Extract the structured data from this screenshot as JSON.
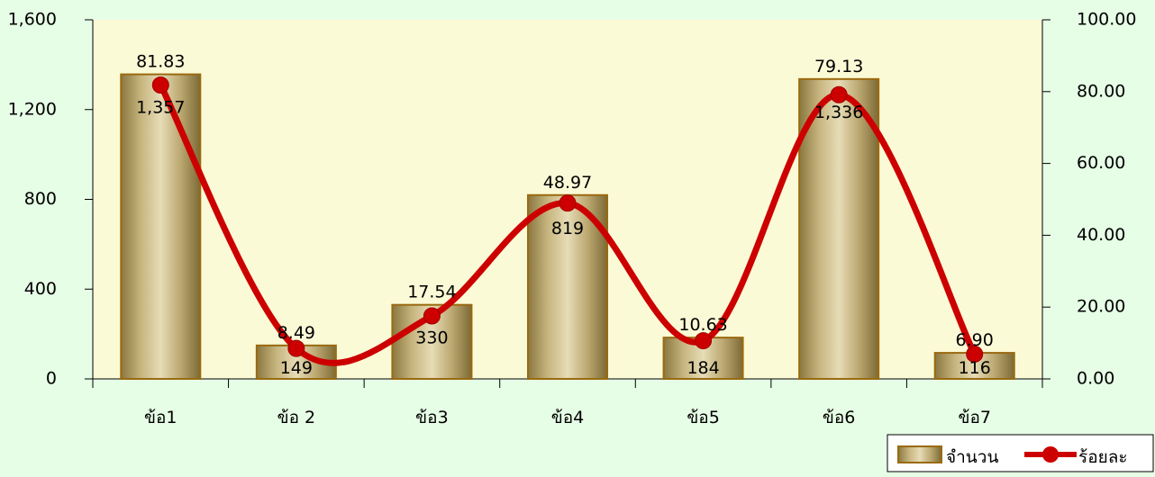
{
  "chart_data": {
    "type": "bar",
    "categories": [
      "ข้อ1",
      "ข้อ 2",
      "ข้อ3",
      "ข้อ4",
      "ข้อ5",
      "ข้อ6",
      "ข้อ7"
    ],
    "series": [
      {
        "name": "จำนวน",
        "type": "bar",
        "axis": "left",
        "values": [
          1357,
          149,
          330,
          819,
          184,
          1336,
          116
        ],
        "labels": [
          "1,357",
          "149",
          "330",
          "819",
          "184",
          "1,336",
          "116"
        ],
        "color": "#c4b07a"
      },
      {
        "name": "ร้อยละ",
        "type": "line",
        "axis": "right",
        "values": [
          81.83,
          8.49,
          17.54,
          48.97,
          10.63,
          79.13,
          6.9
        ],
        "labels": [
          "81.83",
          "8.49",
          "17.54",
          "48.97",
          "10.63",
          "79.13",
          "6.90"
        ],
        "color": "#cc0000"
      }
    ],
    "y_left": {
      "ylim": [
        0,
        1600
      ],
      "ticks": [
        "0",
        "400",
        "800",
        "1,200",
        "1,600"
      ]
    },
    "y_right": {
      "ylim": [
        0,
        100
      ],
      "ticks": [
        "0.00",
        "20.00",
        "40.00",
        "60.00",
        "80.00",
        "100.00"
      ]
    },
    "legend_position": "bottom-right",
    "plot_background": "#fbfad6",
    "grid": false
  }
}
